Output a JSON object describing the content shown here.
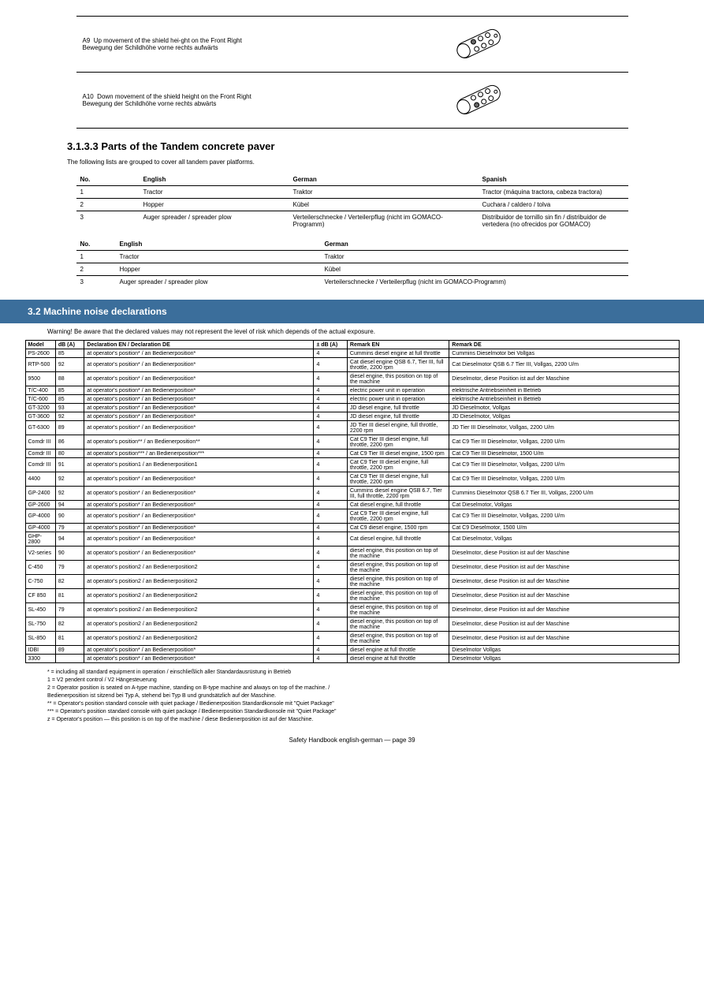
{
  "remote_rows": [
    {
      "code": "A9",
      "desc_en": "Up movement of the shield hei-ght on the Front Right",
      "desc_de": "Bewegung der Schildhöhe vorne rechts aufwärts",
      "svg_hi": "1"
    },
    {
      "code": "A10",
      "desc_en": "Down movement of the shield height on the Front Right",
      "desc_de": "Bewegung der Schildhöhe vorne rechts abwärts",
      "svg_hi": "2"
    }
  ],
  "section_parts_title": "3.1.3.3  Parts of the Tandem concrete paver",
  "section_parts_intro": "The following lists are grouped to cover all tandem paver platforms.",
  "parts_header": {
    "no": "No.",
    "en": "English",
    "de": "German",
    "es": "Spanish"
  },
  "parts_rows": [
    {
      "no": "1",
      "en": "Tractor",
      "de": "Traktor",
      "es": "Tractor (máquina tractora, cabeza tractora)"
    },
    {
      "no": "2",
      "en": "Hopper",
      "de": "Kübel",
      "es": "Cuchara / caldero / tolva"
    },
    {
      "no": "3",
      "en": "Auger spreader / spreader plow",
      "de": "Verteilerschnecke / Verteilerpflug (nicht im GOMACO-Programm)",
      "es": "Distribuidor de tornillo sin fin / distribuidor de vertedera (no ofrecidos por GOMACO)"
    }
  ],
  "parts2_header": {
    "no": "No.",
    "en": "English",
    "de": "German"
  },
  "parts2_rows": [
    {
      "no": "1",
      "en": "Tractor",
      "de": "Traktor"
    },
    {
      "no": "2",
      "en": "Hopper",
      "de": "Kübel"
    },
    {
      "no": "3",
      "en": "Auger spreader / spreader plow",
      "de": "Verteilerschnecke / Verteilerpflug (nicht im GOMACO-Programm)"
    }
  ],
  "section_title": "3.2  Machine noise declarations",
  "warn_text": "Warning! Be aware that the declared values may not represent the level of risk which depends of the actual exposure.",
  "big_header": {
    "model": "Model",
    "db_label": "dB (A)",
    "en": "EN",
    "de": "Declaration DE",
    "unc": "± dB (A)",
    "rem_en": "Remark EN",
    "rem_de": "Remark DE"
  },
  "big_rows": [
    {
      "model": "PS-2600",
      "db": "85",
      "en": "at operator's position*",
      "de": "an Bedienerposition*",
      "unc": "4",
      "rem_en": "Cummins diesel engine at full throttle",
      "rem_de": "Cummins Dieselmotor bei Vollgas"
    },
    {
      "model": "RTP-500",
      "db": "92",
      "en": "at operator's position*",
      "de": "an Bedienerposition*",
      "unc": "4",
      "rem_en": "Cat diesel engine QSB 6.7, Tier III, full throttle, 2200 rpm",
      "rem_de": "Cat Dieselmotor QSB 6.7 Tier III, Vollgas, 2200 U/m"
    },
    {
      "model": "9500",
      "db": "88",
      "en": "at operator's position*",
      "de": "an Bedienerposition*",
      "unc": "4",
      "rem_en": "diesel engine, this position on top of the machine",
      "rem_de": "Dieselmotor, diese Position ist auf der Maschine"
    },
    {
      "model": "T/C-400",
      "db": "85",
      "en": "at operator's position*",
      "de": "an Bedienerposition*",
      "unc": "4",
      "rem_en": "electric power unit in operation",
      "rem_de": "elektrische Antriebseinheit in Betrieb"
    },
    {
      "model": "T/C-600",
      "db": "85",
      "en": "at operator's position*",
      "de": "an Bedienerposition*",
      "unc": "4",
      "rem_en": "electric power unit in operation",
      "rem_de": "elektrische Antriebseinheit in Betrieb"
    },
    {
      "model": "GT-3200",
      "db": "93",
      "en": "at operator's position*",
      "de": "an Bedienerposition*",
      "unc": "4",
      "rem_en": "JD diesel engine, full throttle",
      "rem_de": "JD Dieselmotor, Vollgas"
    },
    {
      "model": "GT-3600",
      "db": "92",
      "en": "at operator's position*",
      "de": "an Bedienerposition*",
      "unc": "4",
      "rem_en": "JD diesel engine, full throttle",
      "rem_de": "JD Dieselmotor, Vollgas"
    },
    {
      "model": "GT-6300",
      "db": "89",
      "en": "at operator's position*",
      "de": "an Bedienerposition*",
      "unc": "4",
      "rem_en": "JD Tier III diesel engine, full throttle, 2200 rpm",
      "rem_de": "JD Tier III Dieselmotor, Vollgas, 2200 U/m"
    },
    {
      "model": "Comdr III",
      "db": "86",
      "en": "at operator's position**",
      "de": "an Bedienerposition**",
      "unc": "4",
      "rem_en": "Cat C9 Tier III diesel engine, full throttle, 2200 rpm",
      "rem_de": "Cat C9 Tier III Dieselmotor, Vollgas, 2200 U/m"
    },
    {
      "model": "Comdr III",
      "db": "80",
      "en": "at operator's position***",
      "de": "an Bedienerposition***",
      "unc": "4",
      "rem_en": "Cat C9 Tier III diesel engine, 1500 rpm",
      "rem_de": "Cat C9 Tier III Dieselmotor, 1500 U/m"
    },
    {
      "model": "Comdr III",
      "db": "91",
      "en": "at operator's position1",
      "de": "an Bedienerposition1",
      "unc": "4",
      "rem_en": "Cat C9 Tier III diesel engine, full throttle, 2200 rpm",
      "rem_de": "Cat C9 Tier III Dieselmotor, Vollgas, 2200 U/m"
    },
    {
      "model": "4400",
      "db": "92",
      "en": "at operator's position*",
      "de": "an Bedienerposition*",
      "unc": "4",
      "rem_en": "Cat C9 Tier III diesel engine, full throttle, 2200 rpm",
      "rem_de": "Cat C9 Tier III Dieselmotor, Vollgas, 2200 U/m"
    },
    {
      "model": "GP-2400",
      "db": "92",
      "en": "at operator's position*",
      "de": "an Bedienerposition*",
      "unc": "4",
      "rem_en": "Cummins diesel engine QSB 6.7, Tier III, full throttle, 2200 rpm",
      "rem_de": "Cummins Dieselmotor QSB 6.7 Tier III, Vollgas, 2200 U/m"
    },
    {
      "model": "GP-2600",
      "db": "94",
      "en": "at operator's position*",
      "de": "an Bedienerposition*",
      "unc": "4",
      "rem_en": "Cat diesel engine, full throttle",
      "rem_de": "Cat Dieselmotor, Vollgas"
    },
    {
      "model": "GP-4000",
      "db": "90",
      "en": "at operator's position*",
      "de": "an Bedienerposition*",
      "unc": "4",
      "rem_en": "Cat C9 Tier III diesel engine, full throttle, 2200 rpm",
      "rem_de": "Cat C9 Tier III Dieselmotor, Vollgas, 2200 U/m"
    },
    {
      "model": "GP-4000",
      "db": "79",
      "en": "at operator's position*",
      "de": "an Bedienerposition*",
      "unc": "4",
      "rem_en": "Cat C9 diesel engine, 1500 rpm",
      "rem_de": "Cat C9 Dieselmotor, 1500 U/m"
    },
    {
      "model": "GHP-2800",
      "db": "94",
      "en": "at operator's position*",
      "de": "an Bedienerposition*",
      "unc": "4",
      "rem_en": "Cat diesel engine, full throttle",
      "rem_de": "Cat Dieselmotor, Vollgas"
    },
    {
      "model": "V2-series",
      "db": "90",
      "en": "at operator's position*",
      "de": "an Bedienerposition*",
      "unc": "4",
      "rem_en": "diesel engine, this position on top of the machine",
      "rem_de": "Dieselmotor, diese Position ist auf der Maschine"
    },
    {
      "model": "C-450",
      "db": "79",
      "en": "at operator's position2",
      "de": "an Bedienerposition2",
      "unc": "4",
      "rem_en": "diesel engine, this position on top of the machine",
      "rem_de": "Dieselmotor, diese Position ist auf der Maschine"
    },
    {
      "model": "C-750",
      "db": "82",
      "en": "at operator's position2",
      "de": "an Bedienerposition2",
      "unc": "4",
      "rem_en": "diesel engine, this position on top of the machine",
      "rem_de": "Dieselmotor, diese Position ist auf der Maschine"
    },
    {
      "model": "CF 850",
      "db": "81",
      "en": "at operator's position2",
      "de": "an Bedienerposition2",
      "unc": "4",
      "rem_en": "diesel engine, this position on top of the machine",
      "rem_de": "Dieselmotor, diese Position ist auf der Maschine"
    },
    {
      "model": "SL-450",
      "db": "79",
      "en": "at operator's position2",
      "de": "an Bedienerposition2",
      "unc": "4",
      "rem_en": "diesel engine, this position on top of the machine",
      "rem_de": "Dieselmotor, diese Position ist auf der Maschine"
    },
    {
      "model": "SL-750",
      "db": "82",
      "en": "at operator's position2",
      "de": "an Bedienerposition2",
      "unc": "4",
      "rem_en": "diesel engine, this position on top of the machine",
      "rem_de": "Dieselmotor, diese Position ist auf der Maschine"
    },
    {
      "model": "SL-850",
      "db": "81",
      "en": "at operator's position2",
      "de": "an Bedienerposition2",
      "unc": "4",
      "rem_en": "diesel engine, this position on top of the machine",
      "rem_de": "Dieselmotor, diese Position ist auf der Maschine"
    },
    {
      "model": "IDBI",
      "db": "89",
      "en": "at operator's position*",
      "de": "an Bedienerposition*",
      "unc": "4",
      "rem_en": "diesel engine at full throttle",
      "rem_de": "Dieselmotor Vollgas"
    },
    {
      "model": "3300",
      "db": "",
      "en": "at operator's position*",
      "de": "an Bedienerposition*",
      "unc": "4",
      "rem_en": "diesel engine at full throttle",
      "rem_de": "Dieselmotor Vollgas"
    }
  ],
  "foot": {
    "l1": "* = including all standard equipment in operation / einschließlich aller Standardausrüstung in Betrieb",
    "l2": "1 = V2 pendent control / V2 Hängesteuerung",
    "l3": "2 = Operator position is seated on A-type machine, standing on B-type machine and always on top of the machine. /",
    "l4": "Bedienerposition ist sitzend bei Typ A, stehend bei Typ B und grundsätzlich auf der Maschine.",
    "l5": "** = Operator's position standard console with quiet package / Bedienerposition Standardkonsole mit \"Quiet Package\"",
    "l6": "*** = Operator's position standard console with quiet package / Bedienerposition Standardkonsole mit \"Quiet Package\"",
    "l7": "z = Operator's position — this position is on top of the machine / diese Bedienerposition ist auf der Maschine."
  },
  "footer": "Safety Handbook english-german — page 39"
}
